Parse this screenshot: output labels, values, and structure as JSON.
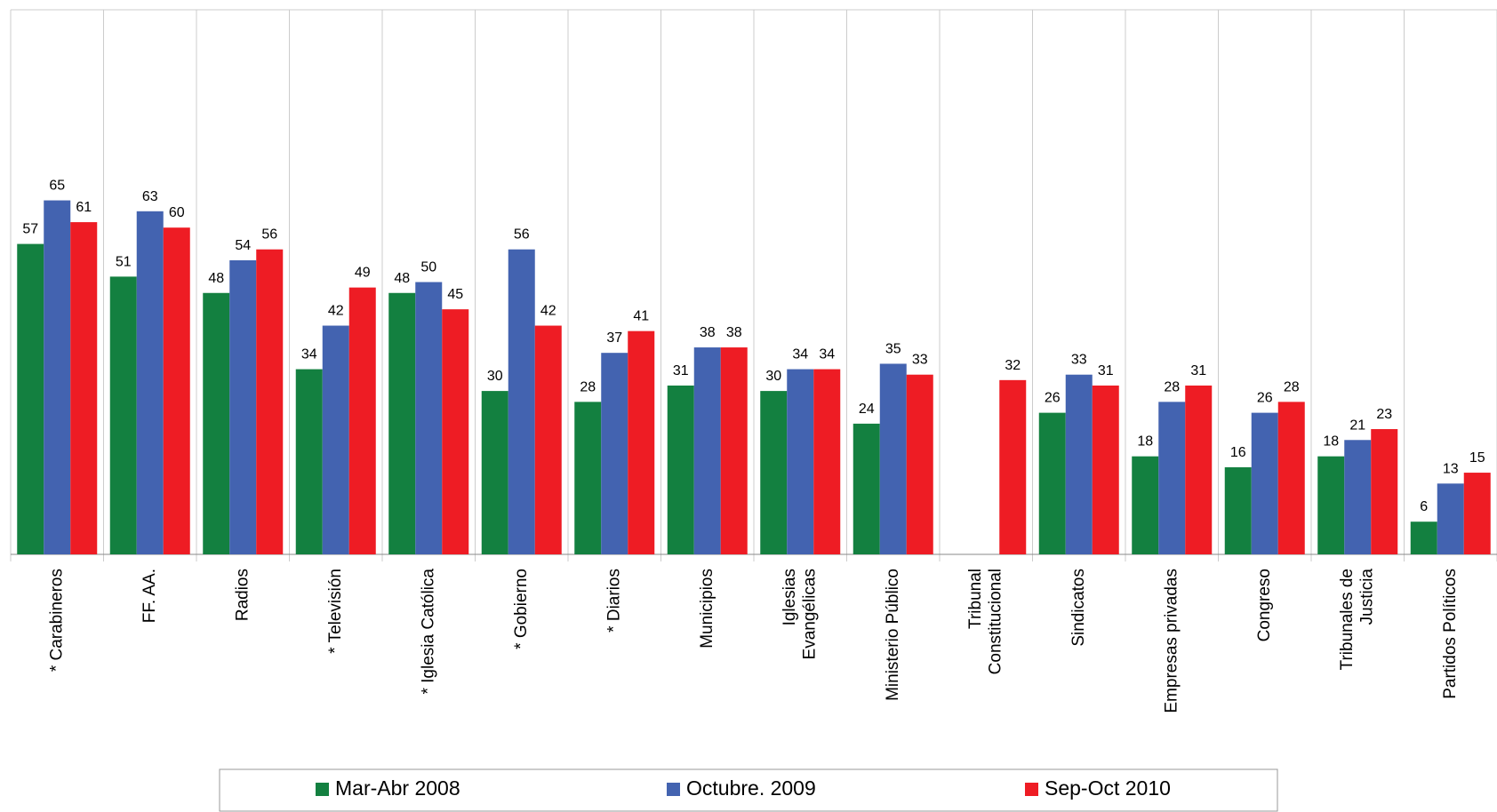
{
  "chart_data": {
    "type": "bar",
    "categories": [
      "* Carabineros",
      "FF. AA.",
      "Radios",
      "* Televisión",
      "* Iglesia Católica",
      "* Gobierno",
      "* Diarios",
      "Municipios",
      "Iglesias\nEvangélicas",
      "Ministerio Público",
      "Tribunal\nConstitucional",
      "Sindicatos",
      "Empresas privadas",
      "Congreso",
      "Tribunales de\nJusticia",
      "Partidos Políticos"
    ],
    "series": [
      {
        "name": "Mar-Abr 2008",
        "color": "#138040",
        "values": [
          57,
          51,
          48,
          34,
          48,
          30,
          28,
          31,
          30,
          24,
          null,
          26,
          18,
          16,
          18,
          6
        ]
      },
      {
        "name": "Octubre. 2009",
        "color": "#4363b0",
        "values": [
          65,
          63,
          54,
          42,
          50,
          56,
          37,
          38,
          34,
          35,
          null,
          33,
          28,
          26,
          21,
          13
        ]
      },
      {
        "name": "Sep-Oct 2010",
        "color": "#ee1c24",
        "values": [
          61,
          60,
          56,
          49,
          45,
          42,
          41,
          38,
          34,
          33,
          32,
          31,
          31,
          28,
          23,
          15
        ]
      }
    ],
    "ylim": [
      0,
      100
    ]
  }
}
